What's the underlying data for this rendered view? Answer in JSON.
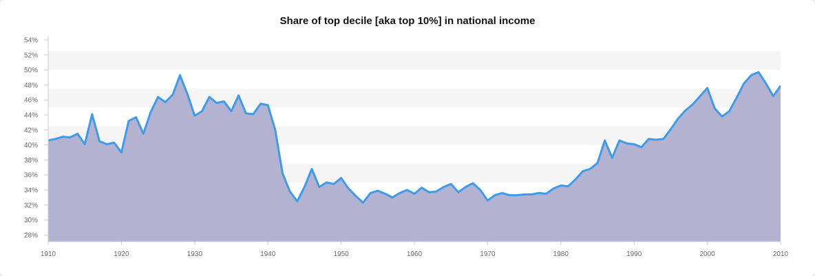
{
  "chart_data": {
    "type": "area",
    "title": "Share of top decile [aka top 10%] in national income",
    "xlabel": "",
    "ylabel": "",
    "xlim": [
      1910,
      2010
    ],
    "ylim": [
      28,
      55
    ],
    "x_ticks": [
      "1910",
      "1920",
      "1930",
      "1940",
      "1950",
      "1960",
      "1970",
      "1980",
      "1990",
      "2000",
      "2010"
    ],
    "y_ticks": [
      "28%",
      "30%",
      "32%",
      "34%",
      "36%",
      "38%",
      "40%",
      "42%",
      "44%",
      "46%",
      "48%",
      "50%",
      "52%",
      "54%"
    ],
    "grid": "alternating horizontal bands",
    "legend": "none",
    "colors": {
      "line": "#3d9be9",
      "fill": "#b3b3d1",
      "band": "#f5f5f5",
      "axis": "#cccccc"
    },
    "series": [
      {
        "x": [
          1910,
          1911,
          1912,
          1913,
          1914,
          1915,
          1916,
          1917,
          1918,
          1919,
          1920,
          1921,
          1922,
          1923,
          1924,
          1925,
          1926,
          1927,
          1928,
          1929,
          1930,
          1931,
          1932,
          1933,
          1934,
          1935,
          1936,
          1937,
          1938,
          1939,
          1940,
          1941,
          1942,
          1943,
          1944,
          1945,
          1946,
          1947,
          1948,
          1949,
          1950,
          1951,
          1952,
          1953,
          1954,
          1955,
          1956,
          1957,
          1958,
          1959,
          1960,
          1961,
          1962,
          1963,
          1964,
          1965,
          1966,
          1967,
          1968,
          1969,
          1970,
          1971,
          1972,
          1973,
          1974,
          1975,
          1976,
          1977,
          1978,
          1979,
          1980,
          1981,
          1982,
          1983,
          1984,
          1985,
          1986,
          1987,
          1988,
          1989,
          1990,
          1991,
          1992,
          1993,
          1994,
          1995,
          1996,
          1997,
          1998,
          1999,
          2000,
          2001,
          2002,
          2003,
          2004,
          2005,
          2006,
          2007,
          2008,
          2009,
          2010
        ],
        "values": [
          40.6,
          40.8,
          41.1,
          41.0,
          41.5,
          40.1,
          44.1,
          40.5,
          40.1,
          40.3,
          39.0,
          43.2,
          43.7,
          41.5,
          44.4,
          46.4,
          45.7,
          46.7,
          49.3,
          46.8,
          43.9,
          44.5,
          46.4,
          45.6,
          45.8,
          44.5,
          46.6,
          44.2,
          44.1,
          45.5,
          45.3,
          42.0,
          36.2,
          33.8,
          32.5,
          34.4,
          36.8,
          34.4,
          35.0,
          34.8,
          35.6,
          34.2,
          33.2,
          32.3,
          33.6,
          33.9,
          33.5,
          33.0,
          33.6,
          34.0,
          33.5,
          34.3,
          33.7,
          33.8,
          34.4,
          34.8,
          33.7,
          34.4,
          34.9,
          34.0,
          32.6,
          33.3,
          33.6,
          33.3,
          33.3,
          33.4,
          33.4,
          33.6,
          33.5,
          34.2,
          34.6,
          34.5,
          35.4,
          36.5,
          36.8,
          37.6,
          40.6,
          38.3,
          40.6,
          40.2,
          40.1,
          39.7,
          40.8,
          40.7,
          40.8,
          42.1,
          43.5,
          44.6,
          45.4,
          46.5,
          47.6,
          44.9,
          43.8,
          44.5,
          46.3,
          48.2,
          49.3,
          49.7,
          48.2,
          46.5,
          47.9
        ]
      }
    ]
  }
}
